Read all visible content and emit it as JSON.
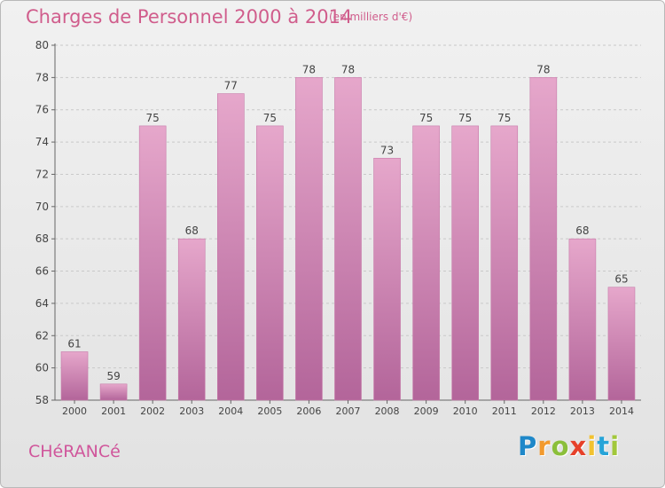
{
  "title": "Charges de Personnel 2000 à 2014",
  "subtitle": "(en milliers d'€)",
  "place": "CHéRANCé",
  "brand": {
    "letters": [
      "P",
      "r",
      "o",
      "x",
      "i",
      "t",
      "i"
    ],
    "colors": [
      "#1f88c9",
      "#f29a2e",
      "#8bbf3a",
      "#e6412a",
      "#f2c230",
      "#27a4d8",
      "#a2c83b"
    ]
  },
  "colors": {
    "bar_top": "#e6a7cb",
    "bar_bottom": "#b3659a",
    "text": "#d05d8c"
  },
  "chart_data": {
    "type": "bar",
    "categories": [
      "2000",
      "2001",
      "2002",
      "2003",
      "2004",
      "2005",
      "2006",
      "2007",
      "2008",
      "2009",
      "2010",
      "2011",
      "2012",
      "2013",
      "2014"
    ],
    "values": [
      61,
      59,
      75,
      68,
      77,
      75,
      78,
      78,
      73,
      75,
      75,
      75,
      78,
      68,
      65
    ],
    "title": "Charges de Personnel 2000 à 2014",
    "subtitle": "(en milliers d'€)",
    "xlabel": "",
    "ylabel": "",
    "ylim": [
      58,
      80
    ],
    "yticks": [
      58,
      60,
      62,
      64,
      66,
      68,
      70,
      72,
      74,
      76,
      78,
      80
    ],
    "grid": true
  }
}
